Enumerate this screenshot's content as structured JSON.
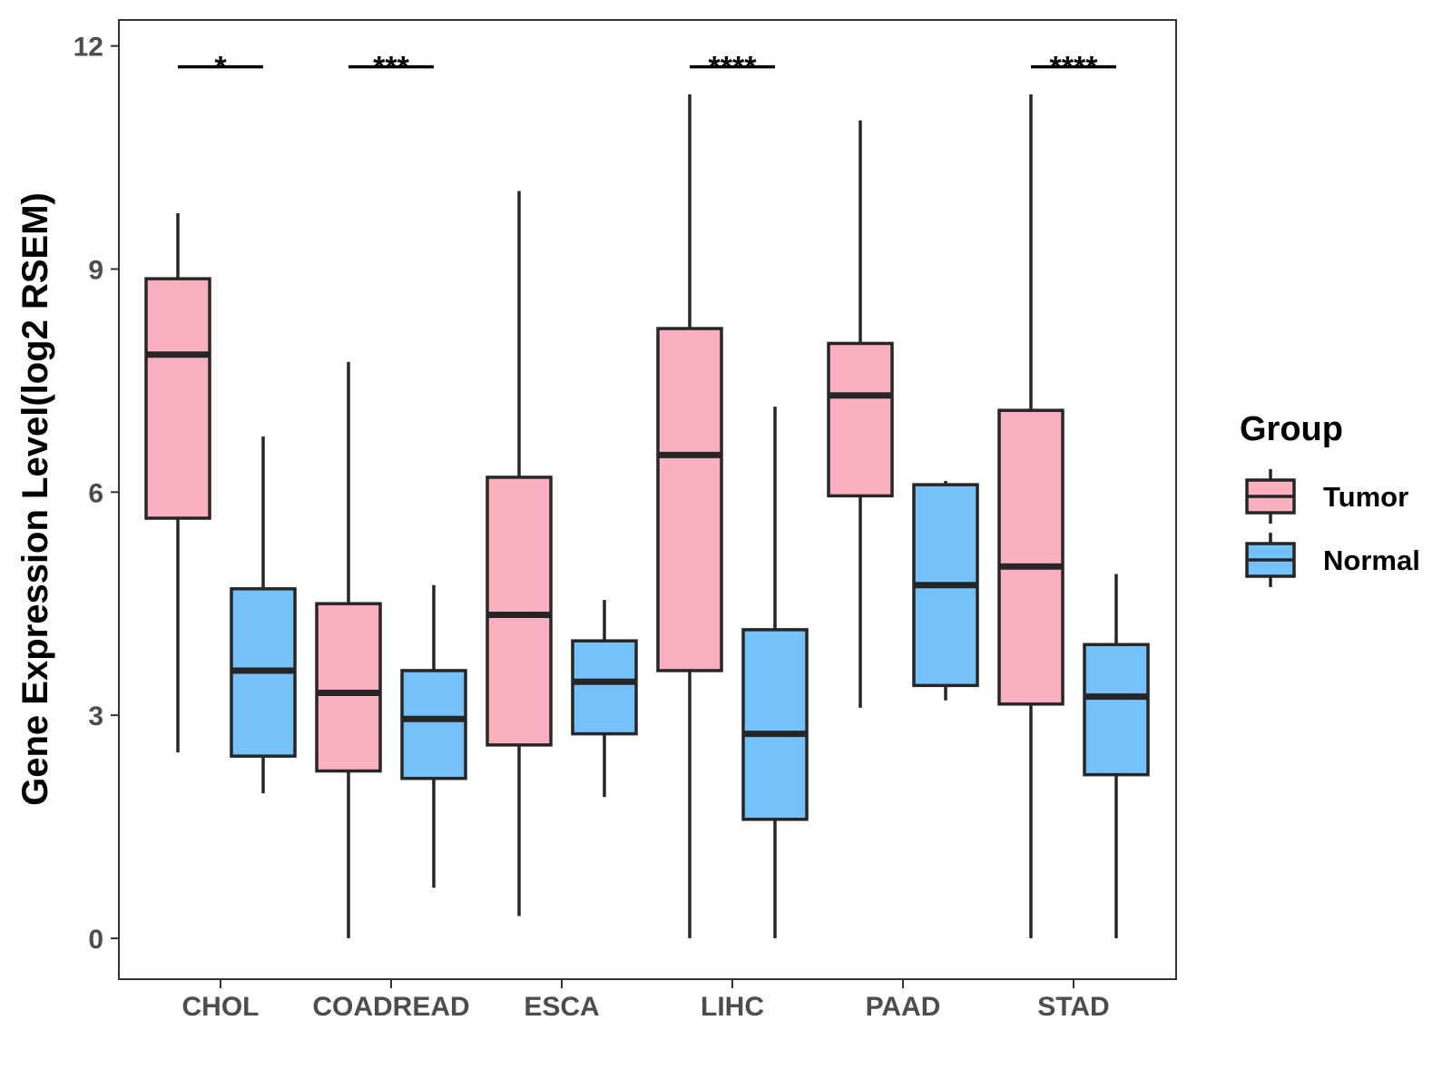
{
  "chart_data": {
    "type": "boxplot",
    "title": "",
    "xlabel": "",
    "ylabel": "Gene Expression Level(log2 RSEM)",
    "ylim": [
      -0.55,
      12.35
    ],
    "yticks": [
      0,
      3,
      6,
      9,
      12
    ],
    "grid": false,
    "legend_position": "right",
    "categories": [
      "CHOL",
      "COADREAD",
      "ESCA",
      "LIHC",
      "PAAD",
      "STAD"
    ],
    "series": [
      {
        "name": "Tumor",
        "color": "#fbb0c2",
        "boxes": [
          {
            "whisker_low": 2.5,
            "q1": 5.65,
            "median": 7.85,
            "q3": 8.87,
            "whisker_high": 9.75
          },
          {
            "whisker_low": 0.0,
            "q1": 2.25,
            "median": 3.3,
            "q3": 4.5,
            "whisker_high": 7.75
          },
          {
            "whisker_low": 0.3,
            "q1": 2.6,
            "median": 4.35,
            "q3": 6.2,
            "whisker_high": 10.05
          },
          {
            "whisker_low": 0.0,
            "q1": 3.6,
            "median": 6.5,
            "q3": 8.2,
            "whisker_high": 11.35
          },
          {
            "whisker_low": 3.1,
            "q1": 5.95,
            "median": 7.3,
            "q3": 8.0,
            "whisker_high": 11.0
          },
          {
            "whisker_low": 0.0,
            "q1": 3.15,
            "median": 5.0,
            "q3": 7.1,
            "whisker_high": 11.35
          }
        ]
      },
      {
        "name": "Normal",
        "color": "#75c1f9",
        "boxes": [
          {
            "whisker_low": 1.95,
            "q1": 2.45,
            "median": 3.6,
            "q3": 4.7,
            "whisker_high": 6.75
          },
          {
            "whisker_low": 0.68,
            "q1": 2.15,
            "median": 2.95,
            "q3": 3.6,
            "whisker_high": 4.75
          },
          {
            "whisker_low": 1.9,
            "q1": 2.75,
            "median": 3.45,
            "q3": 4.0,
            "whisker_high": 4.55
          },
          {
            "whisker_low": 0.0,
            "q1": 1.6,
            "median": 2.75,
            "q3": 4.15,
            "whisker_high": 7.15
          },
          {
            "whisker_low": 3.2,
            "q1": 3.4,
            "median": 4.75,
            "q3": 6.1,
            "whisker_high": 6.15
          },
          {
            "whisker_low": 0.0,
            "q1": 2.2,
            "median": 3.25,
            "q3": 3.95,
            "whisker_high": 4.9
          }
        ]
      }
    ],
    "significance": [
      {
        "category": "CHOL",
        "label": "*",
        "y": 11.72
      },
      {
        "category": "COADREAD",
        "label": "***",
        "y": 11.72
      },
      {
        "category": "LIHC",
        "label": "****",
        "y": 11.72
      },
      {
        "category": "STAD",
        "label": "****",
        "y": 11.72
      }
    ],
    "legend": {
      "title": "Group",
      "entries": [
        "Tumor",
        "Normal"
      ]
    }
  }
}
